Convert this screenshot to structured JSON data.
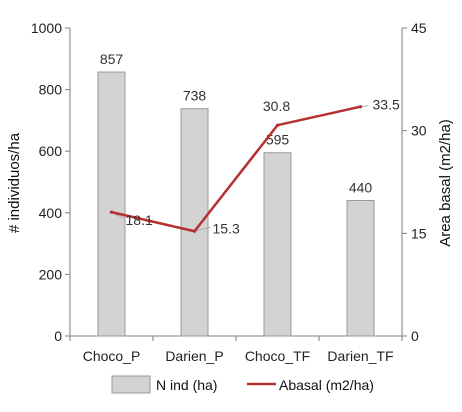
{
  "chart_data": {
    "type": "bar+line",
    "categories": [
      "Choco_P",
      "Darien_P",
      "Choco_TF",
      "Darien_TF"
    ],
    "series": [
      {
        "name": "N ind (ha)",
        "type": "bar",
        "axis": "left",
        "values": [
          857,
          738,
          595,
          440
        ],
        "value_labels": [
          "857",
          "738",
          "595",
          "440"
        ]
      },
      {
        "name": "Abasal (m2/ha)",
        "type": "line",
        "axis": "right",
        "values": [
          18.1,
          15.3,
          30.8,
          33.5
        ],
        "value_labels": [
          "18.1",
          "15.3",
          "30.8",
          "33.5"
        ]
      }
    ],
    "ylabel": "# individuos/ha",
    "ylabel_right": "Area basal (m2/ha)",
    "ylim": [
      0,
      1000
    ],
    "ylim_right": [
      0,
      45
    ],
    "yticks": [
      "0",
      "200",
      "400",
      "600",
      "800",
      "1000"
    ],
    "yticks_right": [
      "0",
      "15",
      "30",
      "45"
    ],
    "grid": false,
    "legend_position": "bottom",
    "colors": {
      "bar_fill": "#d3d3d3",
      "bar_stroke": "#9a9a9a",
      "line": "#b5302f",
      "axis": "#7f7f7f"
    }
  }
}
